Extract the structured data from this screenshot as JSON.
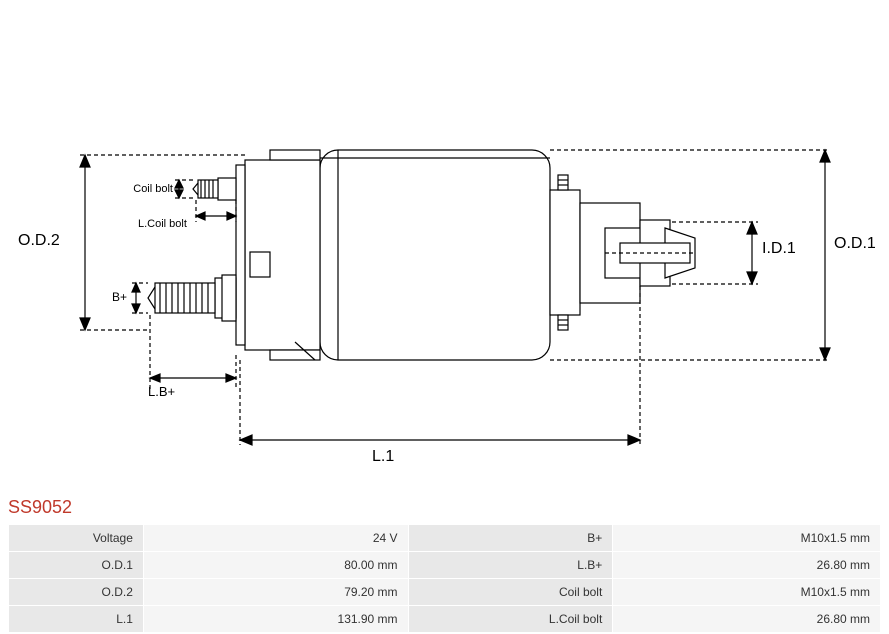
{
  "part_number": "SS9052",
  "diagram": {
    "labels": {
      "od2": "O.D.2",
      "coil_bolt": "Coil bolt",
      "l_coil_bolt": "L.Coil bolt",
      "b_plus": "B+",
      "l_b_plus": "L.B+",
      "l1": "L.1",
      "id1": "I.D.1",
      "od1": "O.D.1"
    },
    "stroke_color": "#000000",
    "stroke_width": 1.2,
    "dash_pattern": "4,3",
    "background": "#ffffff"
  },
  "specs": {
    "rows": [
      {
        "label1": "Voltage",
        "value1": "24 V",
        "label2": "B+",
        "value2": "M10x1.5 mm"
      },
      {
        "label1": "O.D.1",
        "value1": "80.00 mm",
        "label2": "L.B+",
        "value2": "26.80 mm"
      },
      {
        "label1": "O.D.2",
        "value1": "79.20 mm",
        "label2": "Coil bolt",
        "value2": "M10x1.5 mm"
      },
      {
        "label1": "L.1",
        "value1": "131.90 mm",
        "label2": "L.Coil bolt",
        "value2": "26.80 mm"
      }
    ],
    "colors": {
      "label_bg": "#e8e8e8",
      "value_bg": "#f5f5f5",
      "border": "#ffffff",
      "text": "#333333"
    }
  }
}
